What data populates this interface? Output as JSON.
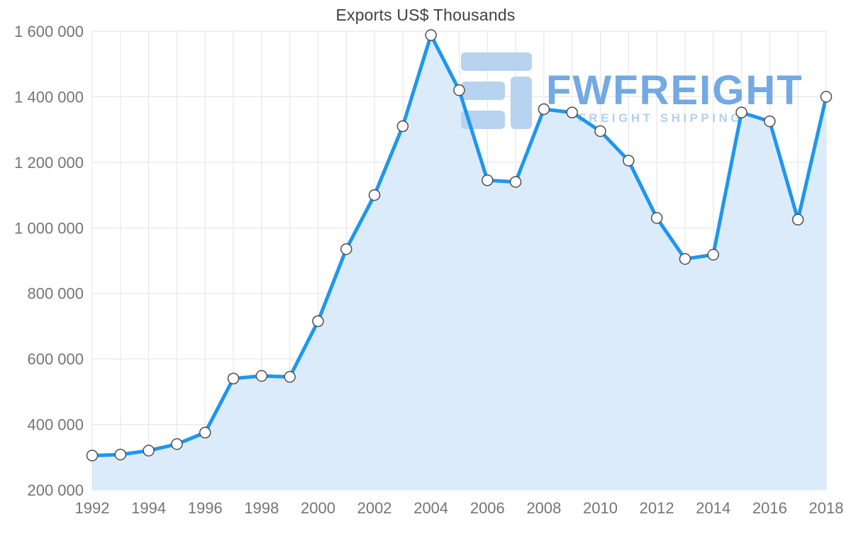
{
  "title": "Exports US$ Thousands",
  "watermark": {
    "brand": "FWFREIGHT",
    "tagline": "FREIGHT SHIPPING",
    "brand_color": "#5b9be0",
    "tagline_color": "#a9cbf0",
    "logo_color": "#b7d3f0"
  },
  "chart_data": {
    "type": "line",
    "title": "Exports US$ Thousands",
    "xlabel": "",
    "ylabel": "",
    "x": [
      1992,
      1993,
      1994,
      1995,
      1996,
      1997,
      1998,
      1999,
      2000,
      2001,
      2002,
      2003,
      2004,
      2005,
      2006,
      2007,
      2008,
      2009,
      2010,
      2011,
      2012,
      2013,
      2014,
      2015,
      2016,
      2017,
      2018
    ],
    "series": [
      {
        "name": "Exports US$ Thousands",
        "values": [
          305000,
          308000,
          320000,
          340000,
          375000,
          540000,
          548000,
          545000,
          715000,
          935000,
          1100000,
          1310000,
          1588000,
          1420000,
          1145000,
          1140000,
          1362000,
          1352000,
          1295000,
          1205000,
          1030000,
          905000,
          918000,
          1352000,
          1325000,
          1025000,
          1400000
        ]
      }
    ],
    "ylim": [
      200000,
      1600000
    ],
    "xlim": [
      1992,
      2018
    ],
    "yticks": [
      200000,
      400000,
      600000,
      800000,
      1000000,
      1200000,
      1400000,
      1600000
    ],
    "ytick_labels": [
      "200 000",
      "400 000",
      "600 000",
      "800 000",
      "1 000 000",
      "1 200 000",
      "1 400 000",
      "1 600 000"
    ],
    "xticks": [
      1992,
      1994,
      1996,
      1998,
      2000,
      2002,
      2004,
      2006,
      2008,
      2010,
      2012,
      2014,
      2016,
      2018
    ],
    "xtick_labels": [
      "1992",
      "1994",
      "1996",
      "1998",
      "2000",
      "2002",
      "2004",
      "2006",
      "2008",
      "2010",
      "2012",
      "2014",
      "2016",
      "2018"
    ],
    "grid": true,
    "legend": "none",
    "grid_color": "#e3e3e3",
    "tick_color": "#757575",
    "line_color": "#1e96f0",
    "area_color": "#dcebfa",
    "marker_fill": "#ffffff",
    "marker_stroke": "#4d4d4d"
  }
}
